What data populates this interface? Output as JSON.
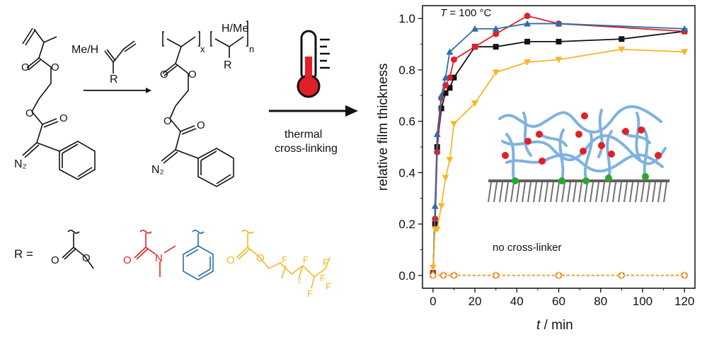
{
  "scheme": {
    "reagent": "Me/H",
    "reagent_r": "R",
    "polymer_substituent": "H/Me",
    "polymer_r": "R",
    "sub_x": "x",
    "sub_n": "n",
    "diazo": "N₂",
    "diazo_polymer": "N₂",
    "condition_line1": "thermal",
    "condition_line2": "cross-linking",
    "r_equals": "R ="
  },
  "colors": {
    "black": "#111111",
    "red": "#e21f26",
    "blue": "#2a6ea8",
    "yellow": "#f4b72a",
    "network": "#7fb2e0",
    "surface": "#707070",
    "anchor": "#2aa82a"
  },
  "chart_data": {
    "type": "line",
    "annotation_temp": "T = 100 °C",
    "annotation_t": "T",
    "annotation_temp_rest": " = 100 °C",
    "annotation_control": "no cross-linker",
    "xlabel_italic": "t",
    "xlabel_rest": " / min",
    "ylabel": "relative film thickness",
    "xlim": [
      -5,
      125
    ],
    "ylim": [
      -0.05,
      1.05
    ],
    "xticks": [
      0,
      20,
      40,
      60,
      80,
      100,
      120
    ],
    "yticks": [
      0.0,
      0.2,
      0.4,
      0.6,
      0.8,
      1.0
    ],
    "ytick_labels": [
      "0.0",
      "0.2",
      "0.4",
      "0.6",
      "0.8",
      "1.0"
    ],
    "series": [
      {
        "color": "#111111",
        "marker": "square",
        "x": [
          0,
          1,
          2,
          4,
          6,
          8,
          10,
          20,
          30,
          45,
          60,
          90,
          120
        ],
        "y": [
          0.01,
          0.2,
          0.5,
          0.65,
          0.71,
          0.73,
          0.77,
          0.89,
          0.89,
          0.91,
          0.91,
          0.92,
          0.95
        ]
      },
      {
        "color": "#e21f26",
        "marker": "circle",
        "x": [
          0,
          1,
          2,
          4,
          6,
          8,
          10,
          20,
          30,
          45,
          60,
          120
        ],
        "y": [
          0.01,
          0.22,
          0.48,
          0.69,
          0.74,
          0.77,
          0.84,
          0.89,
          0.94,
          1.01,
          0.98,
          0.95
        ]
      },
      {
        "color": "#2a6ea8",
        "marker": "triangle-up",
        "x": [
          0,
          1,
          2,
          4,
          6,
          8,
          20,
          30,
          45,
          60,
          120
        ],
        "y": [
          0.01,
          0.27,
          0.55,
          0.7,
          0.77,
          0.87,
          0.96,
          0.96,
          0.98,
          0.98,
          0.96
        ]
      },
      {
        "color": "#f4b72a",
        "marker": "triangle-down",
        "x": [
          0,
          1,
          2,
          4,
          6,
          8,
          10,
          20,
          30,
          45,
          60,
          90,
          120
        ],
        "y": [
          0.03,
          0.18,
          0.18,
          0.27,
          0.38,
          0.45,
          0.59,
          0.67,
          0.79,
          0.83,
          0.84,
          0.88,
          0.87
        ]
      },
      {
        "color": "#e21f26",
        "marker": "open-circle",
        "dashed": true,
        "x": [
          0,
          5,
          10,
          30,
          60,
          90,
          120
        ],
        "y": [
          0.0,
          0.0,
          0.0,
          0.0,
          0.0,
          0.0,
          0.0
        ]
      },
      {
        "color": "#f4b72a",
        "marker": "open-diamond",
        "dashed": true,
        "x": [
          0,
          5,
          10,
          30,
          60,
          90,
          120
        ],
        "y": [
          0.0,
          0.0,
          0.0,
          0.0,
          0.0,
          0.0,
          0.0
        ]
      }
    ]
  }
}
